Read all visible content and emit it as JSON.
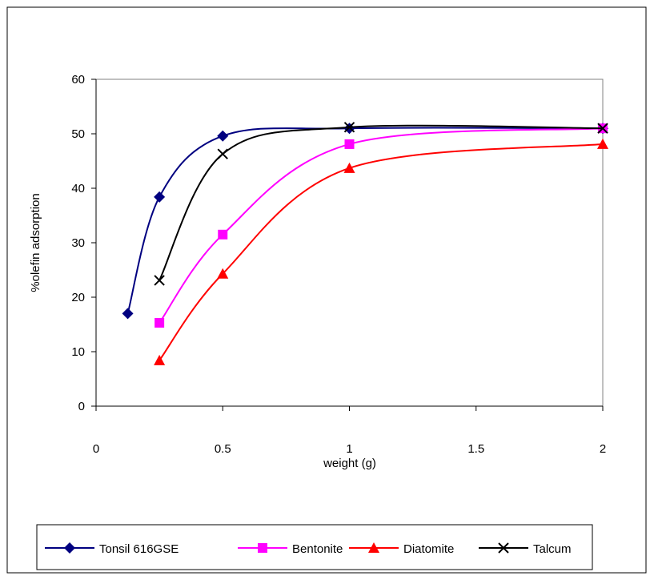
{
  "chart_data": {
    "type": "line",
    "x_label": "weight (g)",
    "y_label": "%olefin adsorption",
    "xlim": [
      0,
      2
    ],
    "xticks": [
      0,
      0.5,
      1,
      1.5,
      2
    ],
    "ylim": [
      0,
      60
    ],
    "yticks": [
      0,
      10,
      20,
      30,
      40,
      50,
      60
    ],
    "smooth": true,
    "legend": "bottom",
    "series": [
      {
        "name": "Tonsil 616GSE",
        "color": "#000080",
        "marker": "diamond",
        "x": [
          0.125,
          0.25,
          0.5,
          1,
          2
        ],
        "values": [
          17,
          38.4,
          49.6,
          51,
          51
        ]
      },
      {
        "name": "Bentonite",
        "color": "#ff00ff",
        "marker": "square",
        "x": [
          0.25,
          0.5,
          1,
          2
        ],
        "values": [
          15.3,
          31.5,
          48.1,
          51
        ]
      },
      {
        "name": "Diatomite",
        "color": "#ff0000",
        "marker": "triangle",
        "x": [
          0.25,
          0.5,
          1,
          2
        ],
        "values": [
          8.4,
          24.3,
          43.7,
          48.1
        ]
      },
      {
        "name": "Talcum",
        "color": "#000000",
        "marker": "x",
        "x": [
          0.25,
          0.5,
          1,
          2
        ],
        "values": [
          23.1,
          46.3,
          51.2,
          51
        ]
      }
    ]
  }
}
